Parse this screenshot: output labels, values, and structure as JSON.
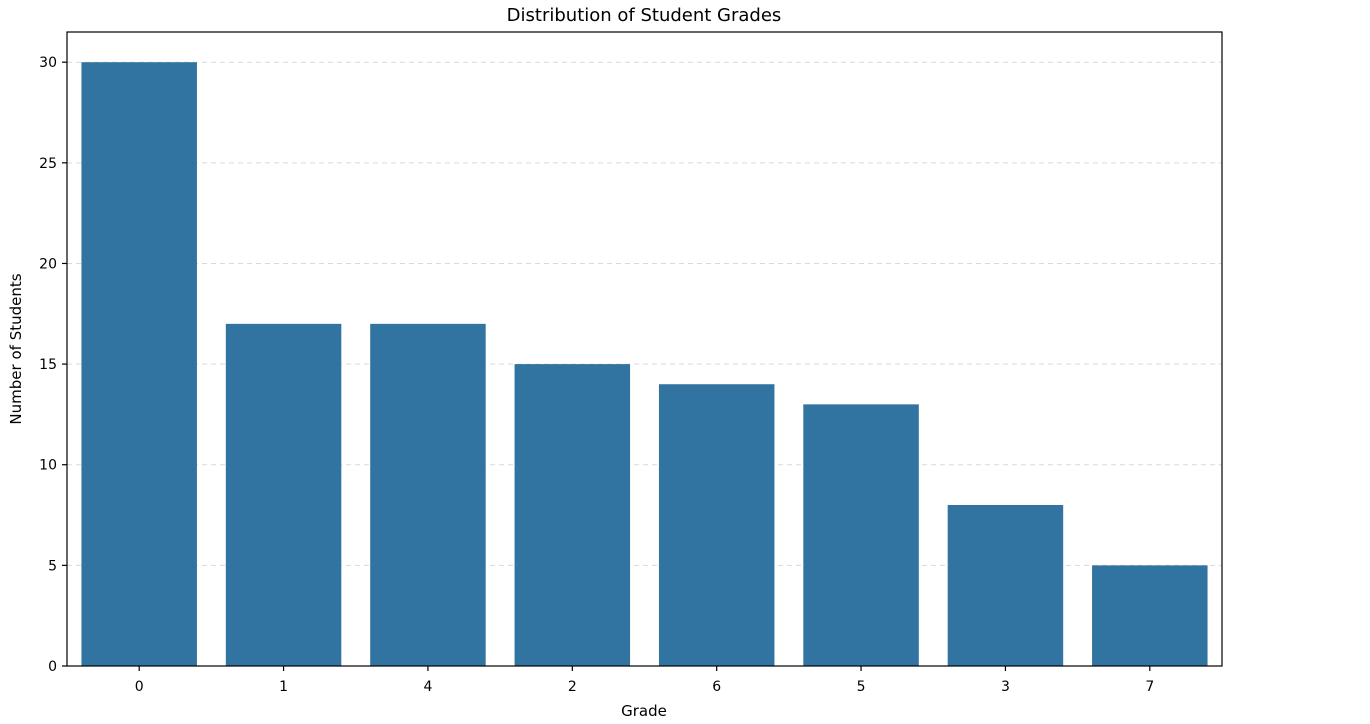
{
  "chart_data": {
    "type": "bar",
    "title": "Distribution of Student Grades",
    "xlabel": "Grade",
    "ylabel": "Number of Students",
    "categories": [
      "0",
      "1",
      "4",
      "2",
      "6",
      "5",
      "3",
      "7"
    ],
    "values": [
      30,
      17,
      17,
      15,
      14,
      13,
      8,
      5
    ],
    "ylim": [
      0,
      31.5
    ],
    "yticks": [
      "0",
      "5",
      "10",
      "15",
      "20",
      "25",
      "30"
    ],
    "grid": "horizontal dashed",
    "bar_color": "#3274a1",
    "grid_color": "#d9d9d9"
  }
}
